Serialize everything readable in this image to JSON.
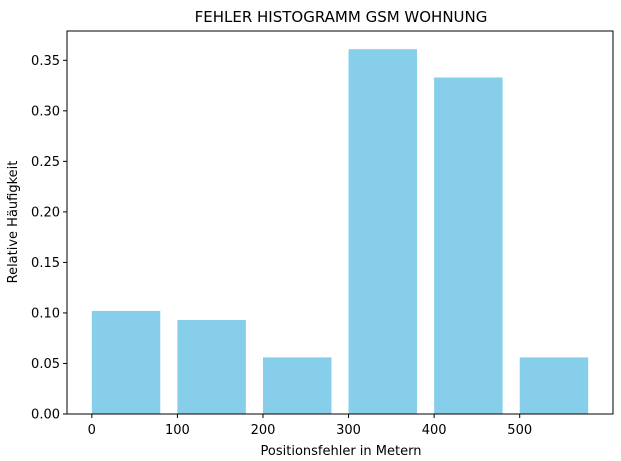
{
  "chart_data": {
    "type": "bar",
    "title": "FEHLER HISTOGRAMM GSM WOHNUNG",
    "xlabel": "Positionsfehler in Metern",
    "ylabel": "Relative Häufigkeit",
    "bins": [
      {
        "start": 0,
        "end": 80,
        "value": 0.102
      },
      {
        "start": 100,
        "end": 180,
        "value": 0.093
      },
      {
        "start": 200,
        "end": 280,
        "value": 0.056
      },
      {
        "start": 300,
        "end": 380,
        "value": 0.361
      },
      {
        "start": 400,
        "end": 480,
        "value": 0.333
      },
      {
        "start": 500,
        "end": 580,
        "value": 0.056
      }
    ],
    "xlim": [
      -29,
      609
    ],
    "ylim": [
      0,
      0.379
    ],
    "xticks": [
      {
        "value": 0,
        "label": "0"
      },
      {
        "value": 100,
        "label": "100"
      },
      {
        "value": 200,
        "label": "200"
      },
      {
        "value": 300,
        "label": "300"
      },
      {
        "value": 400,
        "label": "400"
      },
      {
        "value": 500,
        "label": "500"
      }
    ],
    "yticks": [
      {
        "value": 0.0,
        "label": "0.00"
      },
      {
        "value": 0.05,
        "label": "0.05"
      },
      {
        "value": 0.1,
        "label": "0.10"
      },
      {
        "value": 0.15,
        "label": "0.15"
      },
      {
        "value": 0.2,
        "label": "0.20"
      },
      {
        "value": 0.25,
        "label": "0.25"
      },
      {
        "value": 0.3,
        "label": "0.30"
      },
      {
        "value": 0.35,
        "label": "0.35"
      }
    ],
    "bar_color": "#87ceeb",
    "grid": false,
    "legend": "none"
  }
}
